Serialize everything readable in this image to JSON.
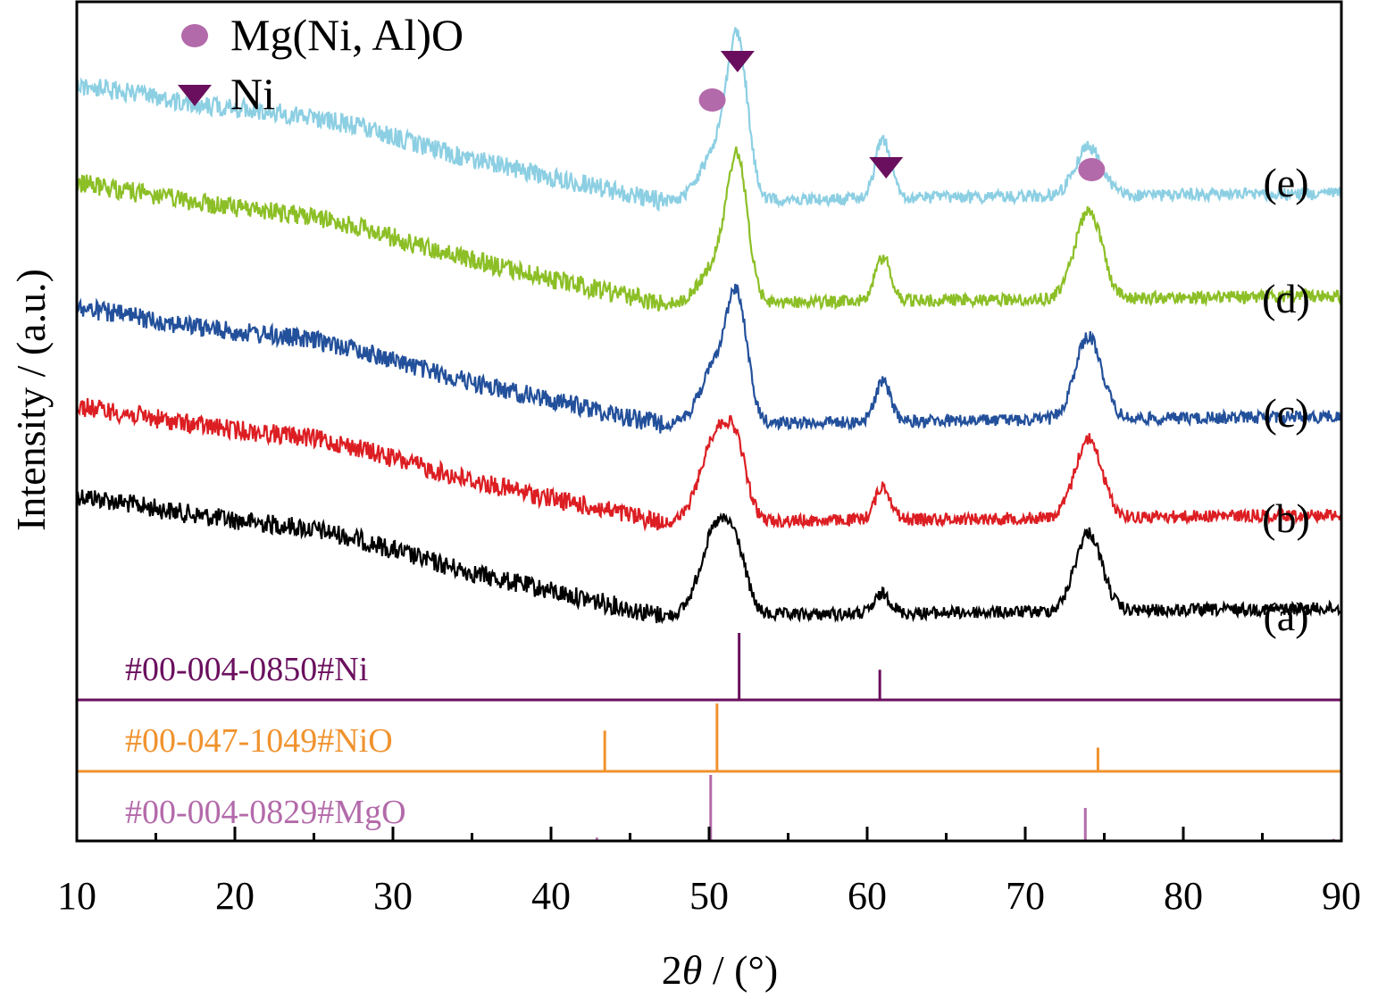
{
  "chart_data": {
    "type": "line",
    "xlabel_prefix": "2",
    "xlabel_symbol": "θ",
    "xlabel_suffix": " / (°)",
    "ylabel": "Intensity / (a.u.)",
    "xlim": [
      10,
      90
    ],
    "x_ticks": [
      10,
      20,
      30,
      40,
      50,
      60,
      70,
      80,
      90
    ],
    "x_minor_ticks": [
      15,
      25,
      35,
      45,
      55,
      65,
      75,
      85
    ],
    "y_ticks_shown": false,
    "legend_placement": "top-left",
    "legend": [
      {
        "marker": "circle",
        "label": "Mg(Ni, Al)O",
        "color": "#b36aaa"
      },
      {
        "marker": "triangle-down",
        "label": "Ni",
        "color": "#6a0f5e"
      }
    ],
    "series": [
      {
        "name": "(a)",
        "color": "#000000",
        "baseline_start": 1.0,
        "baseline_end": 0.55,
        "peaks": [
          {
            "x": 50.5,
            "height": 0.45
          },
          {
            "x": 51.8,
            "height": 0.2
          },
          {
            "x": 61.0,
            "height": 0.1
          },
          {
            "x": 74.0,
            "height": 0.4
          }
        ]
      },
      {
        "name": "(b)",
        "color": "#dc1e23",
        "baseline_start": 1.0,
        "baseline_end": 0.55,
        "peaks": [
          {
            "x": 50.5,
            "height": 0.45
          },
          {
            "x": 51.8,
            "height": 0.25
          },
          {
            "x": 61.0,
            "height": 0.17
          },
          {
            "x": 74.0,
            "height": 0.4
          }
        ]
      },
      {
        "name": "(c)",
        "color": "#23509b",
        "baseline_start": 1.0,
        "baseline_end": 0.55,
        "peaks": [
          {
            "x": 50.5,
            "height": 0.3
          },
          {
            "x": 51.8,
            "height": 0.55
          },
          {
            "x": 61.0,
            "height": 0.2
          },
          {
            "x": 74.0,
            "height": 0.42
          }
        ]
      },
      {
        "name": "(d)",
        "color": "#8cbf26",
        "baseline_start": 1.0,
        "baseline_end": 0.55,
        "peaks": [
          {
            "x": 50.5,
            "height": 0.2
          },
          {
            "x": 51.8,
            "height": 0.68
          },
          {
            "x": 61.0,
            "height": 0.22
          },
          {
            "x": 74.0,
            "height": 0.45
          }
        ]
      },
      {
        "name": "(e)",
        "color": "#8ccfe3",
        "baseline_start": 1.0,
        "baseline_end": 0.55,
        "peaks": [
          {
            "x": 50.5,
            "height": 0.25
          },
          {
            "x": 51.8,
            "height": 0.75
          },
          {
            "x": 61.0,
            "height": 0.3
          },
          {
            "x": 74.0,
            "height": 0.25
          }
        ]
      }
    ],
    "peak_markers": [
      {
        "series": "(e)",
        "x": 50.2,
        "marker": "circle"
      },
      {
        "series": "(e)",
        "x": 51.8,
        "marker": "triangle-down"
      },
      {
        "series": "(e)",
        "x": 61.2,
        "marker": "triangle-down"
      },
      {
        "series": "(e)",
        "x": 74.2,
        "marker": "circle"
      }
    ],
    "reference_patterns": [
      {
        "label": "#00-004-0850#Ni",
        "color": "#6a0f5e",
        "lines": [
          {
            "x": 51.9,
            "intensity": 1.0
          },
          {
            "x": 60.8,
            "intensity": 0.45
          }
        ]
      },
      {
        "label": "#00-047-1049#NiO",
        "color": "#f0922d",
        "lines": [
          {
            "x": 43.4,
            "intensity": 0.6
          },
          {
            "x": 50.5,
            "intensity": 1.0
          },
          {
            "x": 74.6,
            "intensity": 0.35
          }
        ]
      },
      {
        "label": "#00-004-0829#MgO",
        "color": "#b36aaa",
        "lines": [
          {
            "x": 42.9,
            "intensity": 0.05
          },
          {
            "x": 50.1,
            "intensity": 1.0
          },
          {
            "x": 73.8,
            "intensity": 0.5
          },
          {
            "x": 89.5,
            "intensity": 0.03
          }
        ]
      }
    ]
  }
}
